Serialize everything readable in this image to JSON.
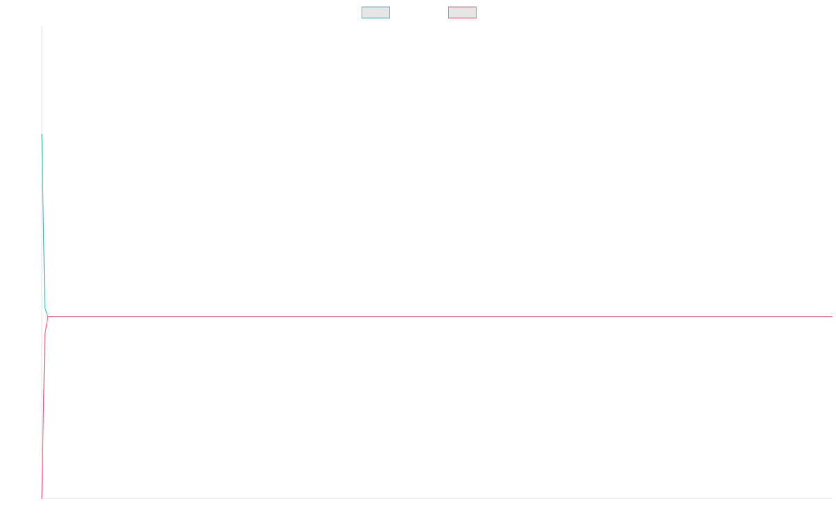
{
  "chart_data": {
    "type": "line",
    "title": "",
    "xlabel": "",
    "ylabel": "",
    "x": [
      0,
      1,
      2,
      3
    ],
    "series": [
      {
        "name": "",
        "color": "#4bc0c0",
        "fill": "rgba(75,192,192,0.2)",
        "values": [
          1.0,
          0.05,
          0.0,
          0.0
        ]
      },
      {
        "name": "",
        "color": "#ff6384",
        "fill": "rgba(255,99,132,0.2)",
        "values": [
          -1.0,
          -0.1,
          0.0,
          0.0
        ]
      }
    ],
    "xlim": [
      0,
      260
    ],
    "ylim": [
      -1.0,
      1.6
    ],
    "grid": false,
    "legend_position": "top-center",
    "legend_swatch_fill": "#e6e6e6",
    "axis_color": "#e6e6e6"
  }
}
